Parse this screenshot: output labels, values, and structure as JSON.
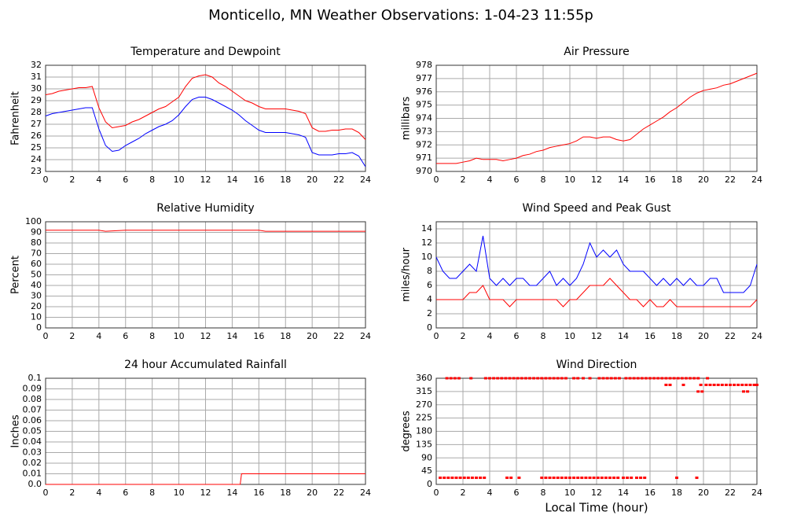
{
  "title": "Monticello, MN Weather Observations: 1-04-23 11:55p",
  "chart_data": [
    {
      "type": "line",
      "title": "Temperature and Dewpoint",
      "ylabel": "Fahrenheit",
      "x": [
        0,
        0.5,
        1,
        1.5,
        2,
        2.5,
        3,
        3.5,
        4,
        4.5,
        5,
        5.5,
        6,
        6.5,
        7,
        7.5,
        8,
        8.5,
        9,
        9.5,
        10,
        10.5,
        11,
        11.5,
        12,
        12.5,
        13,
        13.5,
        14,
        14.5,
        15,
        15.5,
        16,
        16.5,
        17,
        17.5,
        18,
        18.5,
        19,
        19.5,
        20,
        20.5,
        21,
        21.5,
        22,
        22.5,
        23,
        23.5,
        24
      ],
      "series": [
        {
          "name": "Temperature",
          "color": "#ff0000",
          "values": [
            29.5,
            29.6,
            29.8,
            29.9,
            30.0,
            30.1,
            30.1,
            30.2,
            28.4,
            27.2,
            26.7,
            26.8,
            26.9,
            27.2,
            27.4,
            27.7,
            28.0,
            28.3,
            28.5,
            28.9,
            29.3,
            30.2,
            30.9,
            31.1,
            31.2,
            31.0,
            30.5,
            30.2,
            29.8,
            29.4,
            29.0,
            28.8,
            28.5,
            28.3,
            28.3,
            28.3,
            28.3,
            28.2,
            28.1,
            27.9,
            26.7,
            26.4,
            26.4,
            26.5,
            26.5,
            26.6,
            26.6,
            26.3,
            25.7
          ]
        },
        {
          "name": "Dewpoint",
          "color": "#0000ff",
          "values": [
            27.7,
            27.9,
            28.0,
            28.1,
            28.2,
            28.3,
            28.4,
            28.4,
            26.6,
            25.2,
            24.7,
            24.8,
            25.2,
            25.5,
            25.8,
            26.2,
            26.5,
            26.8,
            27.0,
            27.3,
            27.8,
            28.5,
            29.1,
            29.3,
            29.3,
            29.1,
            28.8,
            28.5,
            28.2,
            27.8,
            27.3,
            26.9,
            26.5,
            26.3,
            26.3,
            26.3,
            26.3,
            26.2,
            26.1,
            25.9,
            24.6,
            24.4,
            24.4,
            24.4,
            24.5,
            24.5,
            24.6,
            24.3,
            23.4
          ]
        }
      ],
      "xlim": [
        0,
        24
      ],
      "xticks": [
        0,
        2,
        4,
        6,
        8,
        10,
        12,
        14,
        16,
        18,
        20,
        22,
        24
      ],
      "ylim": [
        23,
        32
      ],
      "yticks": [
        23,
        24,
        25,
        26,
        27,
        28,
        29,
        30,
        31,
        32
      ],
      "grid": true
    },
    {
      "type": "line",
      "title": "Air Pressure",
      "ylabel": "millibars",
      "x": [
        0,
        0.5,
        1,
        1.5,
        2,
        2.5,
        3,
        3.5,
        4,
        4.5,
        5,
        5.5,
        6,
        6.5,
        7,
        7.5,
        8,
        8.5,
        9,
        9.5,
        10,
        10.5,
        11,
        11.5,
        12,
        12.5,
        13,
        13.5,
        14,
        14.5,
        15,
        15.5,
        16,
        16.5,
        17,
        17.5,
        18,
        18.5,
        19,
        19.5,
        20,
        20.5,
        21,
        21.5,
        22,
        22.5,
        23,
        23.5,
        24
      ],
      "series": [
        {
          "name": "Pressure",
          "color": "#ff0000",
          "values": [
            970.6,
            970.6,
            970.6,
            970.6,
            970.7,
            970.8,
            971.0,
            970.9,
            970.9,
            970.9,
            970.8,
            970.9,
            971.0,
            971.2,
            971.3,
            971.5,
            971.6,
            971.8,
            971.9,
            972.0,
            972.1,
            972.3,
            972.6,
            972.6,
            972.5,
            972.6,
            972.6,
            972.4,
            972.3,
            972.4,
            972.8,
            973.2,
            973.5,
            973.8,
            974.1,
            974.5,
            974.8,
            975.2,
            975.6,
            975.9,
            976.1,
            976.2,
            976.3,
            976.5,
            976.6,
            976.8,
            977.0,
            977.2,
            977.4
          ]
        }
      ],
      "xlim": [
        0,
        24
      ],
      "xticks": [
        0,
        2,
        4,
        6,
        8,
        10,
        12,
        14,
        16,
        18,
        20,
        22,
        24
      ],
      "ylim": [
        970,
        978
      ],
      "yticks": [
        970,
        971,
        972,
        973,
        974,
        975,
        976,
        977,
        978
      ],
      "grid": true
    },
    {
      "type": "line",
      "title": "Relative Humidity",
      "ylabel": "Percent",
      "x": [
        0,
        4,
        4.5,
        6,
        8,
        16,
        16.5,
        24
      ],
      "series": [
        {
          "name": "Humidity",
          "color": "#ff0000",
          "values": [
            92,
            92,
            91,
            92,
            92,
            92,
            91,
            91
          ]
        }
      ],
      "xlim": [
        0,
        24
      ],
      "xticks": [
        0,
        2,
        4,
        6,
        8,
        10,
        12,
        14,
        16,
        18,
        20,
        22,
        24
      ],
      "ylim": [
        0,
        100
      ],
      "yticks": [
        0,
        10,
        20,
        30,
        40,
        50,
        60,
        70,
        80,
        90,
        100
      ],
      "grid": true
    },
    {
      "type": "line",
      "title": "Wind Speed and Peak Gust",
      "ylabel": "miles/hour",
      "x": [
        0,
        0.5,
        1,
        1.5,
        2,
        2.5,
        3,
        3.5,
        4,
        4.5,
        5,
        5.5,
        6,
        6.5,
        7,
        7.5,
        8,
        8.5,
        9,
        9.5,
        10,
        10.5,
        11,
        11.5,
        12,
        12.5,
        13,
        13.5,
        14,
        14.5,
        15,
        15.5,
        16,
        16.5,
        17,
        17.5,
        18,
        18.5,
        19,
        19.5,
        20,
        20.5,
        21,
        21.5,
        22,
        22.5,
        23,
        23.5,
        24
      ],
      "series": [
        {
          "name": "Peak Gust",
          "color": "#0000ff",
          "values": [
            10,
            8,
            7,
            7,
            8,
            9,
            8,
            13,
            7,
            6,
            7,
            6,
            7,
            7,
            6,
            6,
            7,
            8,
            6,
            7,
            6,
            7,
            9,
            12,
            10,
            11,
            10,
            11,
            9,
            8,
            8,
            8,
            7,
            6,
            7,
            6,
            7,
            6,
            7,
            6,
            6,
            7,
            7,
            5,
            5,
            5,
            5,
            6,
            9
          ]
        },
        {
          "name": "Wind Speed",
          "color": "#ff0000",
          "values": [
            4,
            4,
            4,
            4,
            4,
            5,
            5,
            6,
            4,
            4,
            4,
            3,
            4,
            4,
            4,
            4,
            4,
            4,
            4,
            3,
            4,
            4,
            5,
            6,
            6,
            6,
            7,
            6,
            5,
            4,
            4,
            3,
            4,
            3,
            3,
            4,
            3,
            3,
            3,
            3,
            3,
            3,
            3,
            3,
            3,
            3,
            3,
            3,
            4
          ]
        }
      ],
      "xlim": [
        0,
        24
      ],
      "xticks": [
        0,
        2,
        4,
        6,
        8,
        10,
        12,
        14,
        16,
        18,
        20,
        22,
        24
      ],
      "ylim": [
        0,
        15
      ],
      "yticks": [
        0,
        2,
        4,
        6,
        8,
        10,
        12,
        14
      ],
      "grid": true
    },
    {
      "type": "line",
      "title": "24 hour Accumulated Rainfall",
      "ylabel": "Inches",
      "x": [
        0,
        14.6,
        14.7,
        24
      ],
      "series": [
        {
          "name": "Rainfall",
          "color": "#ff0000",
          "values": [
            0,
            0,
            0.01,
            0.01
          ]
        }
      ],
      "xlim": [
        0,
        24
      ],
      "xticks": [
        0,
        2,
        4,
        6,
        8,
        10,
        12,
        14,
        16,
        18,
        20,
        22,
        24
      ],
      "ylim": [
        0,
        0.1
      ],
      "yticks": [
        {
          "value": 0,
          "label": "0.0"
        },
        0.01,
        0.02,
        0.03,
        0.04,
        0.05,
        0.06,
        0.07,
        0.08,
        0.09,
        0.1
      ],
      "grid": true
    },
    {
      "type": "scatter",
      "title": "Wind Direction",
      "ylabel": "degrees",
      "xlabel": "Local Time (hour)",
      "color": "#ff0000",
      "x": [
        0.3,
        0.6,
        0.9,
        1.2,
        1.5,
        1.8,
        2.1,
        2.4,
        2.7,
        3.0,
        3.3,
        3.6,
        5.3,
        5.6,
        6.2,
        7.9,
        8.2,
        8.5,
        8.8,
        9.1,
        9.4,
        9.7,
        10,
        10.3,
        10.6,
        10.9,
        11.2,
        11.5,
        11.8,
        12.1,
        12.4,
        12.7,
        13,
        13.3,
        13.6,
        14,
        14.3,
        14.6,
        15,
        15.3,
        15.6,
        18,
        19.5,
        0.8,
        1.1,
        1.4,
        1.7,
        2.6,
        3.7,
        4,
        4.3,
        4.6,
        4.9,
        5.2,
        5.5,
        5.8,
        6.1,
        6.4,
        6.7,
        7,
        7.3,
        7.6,
        7.9,
        8.2,
        8.5,
        8.8,
        9.1,
        9.4,
        9.7,
        10.3,
        10.6,
        11,
        11.5,
        12.2,
        12.5,
        12.8,
        13.1,
        13.4,
        13.7,
        14.2,
        14.5,
        14.8,
        15.1,
        15.4,
        15.7,
        16,
        16.3,
        16.6,
        16.9,
        17.2,
        17.5,
        17.8,
        18.1,
        18.4,
        18.7,
        19,
        19.3,
        19.6,
        20.3,
        17.2,
        17.5,
        18.5,
        19.8,
        20.2,
        20.5,
        20.8,
        21.1,
        21.4,
        21.7,
        22,
        22.3,
        22.6,
        22.9,
        23.2,
        23.5,
        23.8,
        24,
        19.6,
        19.9,
        23,
        23.3
      ],
      "y": [
        22.5,
        22.5,
        22.5,
        22.5,
        22.5,
        22.5,
        22.5,
        22.5,
        22.5,
        22.5,
        22.5,
        22.5,
        22.5,
        22.5,
        22.5,
        22.5,
        22.5,
        22.5,
        22.5,
        22.5,
        22.5,
        22.5,
        22.5,
        22.5,
        22.5,
        22.5,
        22.5,
        22.5,
        22.5,
        22.5,
        22.5,
        22.5,
        22.5,
        22.5,
        22.5,
        22.5,
        22.5,
        22.5,
        22.5,
        22.5,
        22.5,
        22.5,
        22.5,
        360,
        360,
        360,
        360,
        360,
        360,
        360,
        360,
        360,
        360,
        360,
        360,
        360,
        360,
        360,
        360,
        360,
        360,
        360,
        360,
        360,
        360,
        360,
        360,
        360,
        360,
        360,
        360,
        360,
        360,
        360,
        360,
        360,
        360,
        360,
        360,
        360,
        360,
        360,
        360,
        360,
        360,
        360,
        360,
        360,
        360,
        360,
        360,
        360,
        360,
        360,
        360,
        360,
        360,
        360,
        360,
        337.5,
        337.5,
        337.5,
        337.5,
        337.5,
        337.5,
        337.5,
        337.5,
        337.5,
        337.5,
        337.5,
        337.5,
        337.5,
        337.5,
        337.5,
        337.5,
        337.5,
        337.5,
        315,
        315,
        315,
        315
      ],
      "xlim": [
        0,
        24
      ],
      "xticks": [
        0,
        2,
        4,
        6,
        8,
        10,
        12,
        14,
        16,
        18,
        20,
        22,
        24
      ],
      "ylim": [
        0,
        360
      ],
      "yticks": [
        0,
        45,
        90,
        135,
        180,
        225,
        270,
        315,
        360
      ],
      "grid": true
    }
  ]
}
